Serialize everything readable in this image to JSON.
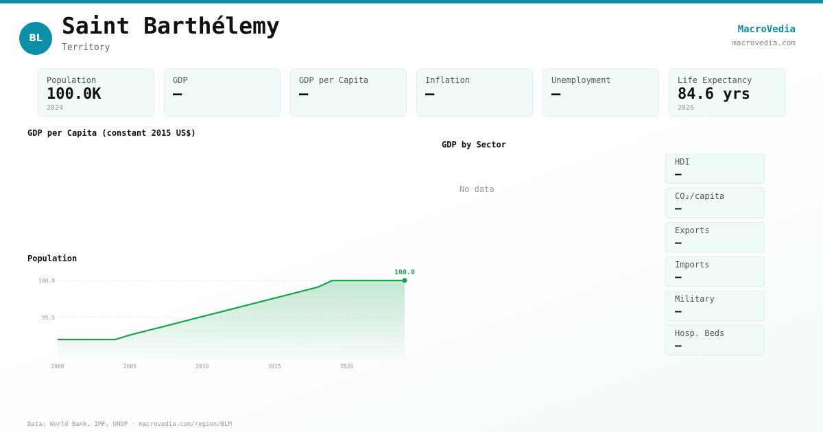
{
  "header": {
    "avatar_initials": "BL",
    "title": "Saint Barthélemy",
    "subtitle": "Territory",
    "brand": "MacroVedia",
    "brand_url": "macrovedia.com",
    "accent_color": "#0e8fa8"
  },
  "stats": [
    {
      "label": "Population",
      "value": "100.0K",
      "year": "2024"
    },
    {
      "label": "GDP",
      "value": "—",
      "year": ""
    },
    {
      "label": "GDP per Capita",
      "value": "—",
      "year": ""
    },
    {
      "label": "Inflation",
      "value": "—",
      "year": ""
    },
    {
      "label": "Unemployment",
      "value": "—",
      "year": ""
    },
    {
      "label": "Life Expectancy",
      "value": "84.6 yrs",
      "year": "2026"
    }
  ],
  "sections": {
    "gdp_per_capita_title": "GDP per Capita (constant 2015 US$)",
    "gdp_by_sector_title": "GDP by Sector",
    "gdp_by_sector_empty": "No data",
    "population_title": "Population"
  },
  "side_cards": [
    {
      "label": "HDI",
      "value": "—"
    },
    {
      "label": "CO₂/capita",
      "value": "—"
    },
    {
      "label": "Exports",
      "value": "—"
    },
    {
      "label": "Imports",
      "value": "—"
    },
    {
      "label": "Military",
      "value": "—"
    },
    {
      "label": "Hosp. Beds",
      "value": "—"
    }
  ],
  "chart_data": {
    "type": "area",
    "title": "Population",
    "x": [
      2000,
      2001,
      2002,
      2003,
      2004,
      2005,
      2006,
      2007,
      2008,
      2009,
      2010,
      2011,
      2012,
      2013,
      2014,
      2015,
      2016,
      2017,
      2018,
      2019,
      2020,
      2021,
      2022,
      2023,
      2024
    ],
    "series": [
      {
        "name": "",
        "values": [
          99.2,
          99.2,
          99.2,
          99.2,
          99.2,
          99.26,
          99.31,
          99.36,
          99.41,
          99.46,
          99.51,
          99.56,
          99.61,
          99.66,
          99.71,
          99.76,
          99.81,
          99.86,
          99.91,
          100.0,
          100.0,
          100.0,
          100.0,
          100.0,
          100.0
        ]
      }
    ],
    "x_ticks": [
      2000,
      2005,
      2010,
      2015,
      2020
    ],
    "y_ticks": [
      100.0,
      99.5
    ],
    "y_tick_labels": [
      "100.0",
      "99.5"
    ],
    "ylim": [
      99.08,
      100.0
    ],
    "end_label": "100.0",
    "grid": true,
    "line_color": "#16a34a"
  },
  "footer": "Data: World Bank, IMF, UNDP · macrovedia.com/region/BLM"
}
